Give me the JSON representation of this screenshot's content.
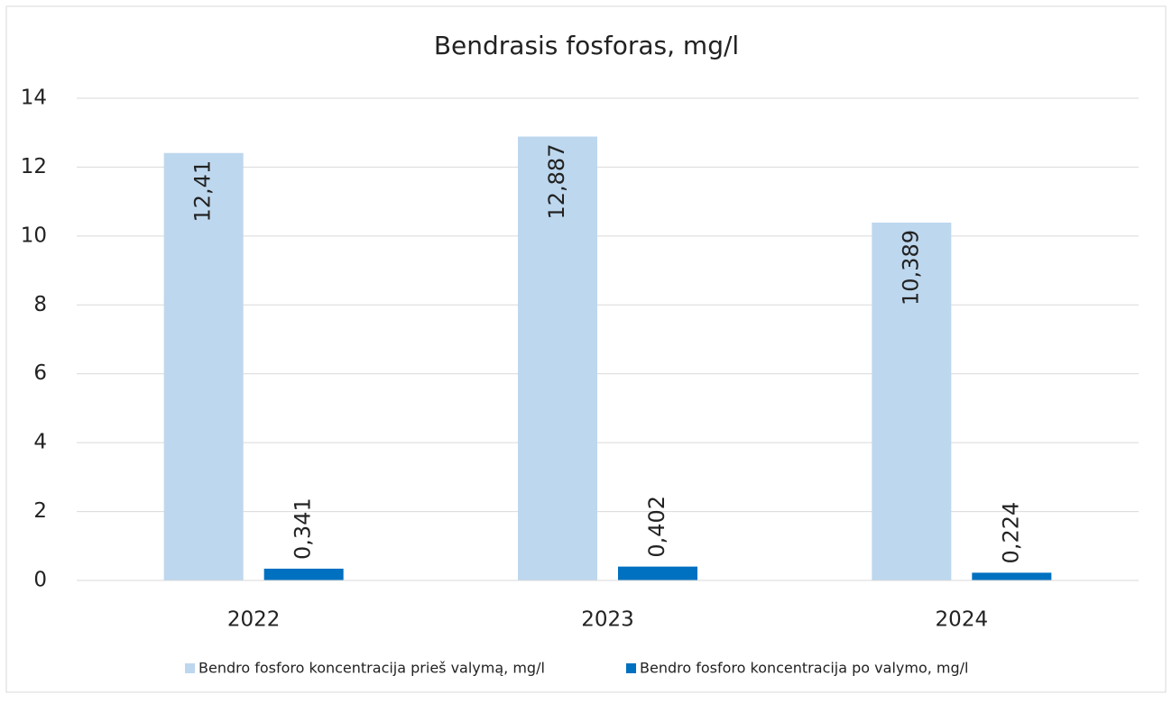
{
  "chart_data": {
    "type": "bar",
    "title": "Bendrasis fosforas, mg/l",
    "categories": [
      "2022",
      "2023",
      "2024"
    ],
    "series": [
      {
        "name": "Bendro fosforo koncentracija prieš valymą, mg/l",
        "color": "#bdd7ee",
        "values": [
          12.41,
          12.887,
          10.389
        ],
        "value_labels": [
          "12,41",
          "12,887",
          "10,389"
        ]
      },
      {
        "name": "Bendro fosforo koncentracija po valymo, mg/l",
        "color": "#0070c0",
        "values": [
          0.341,
          0.402,
          0.224
        ],
        "value_labels": [
          "0,341",
          "0,402",
          "0,224"
        ]
      }
    ],
    "ylim": [
      0,
      14
    ],
    "yticks": [
      0,
      2,
      4,
      6,
      8,
      10,
      12,
      14
    ],
    "grid": true,
    "legend": "bottom"
  }
}
